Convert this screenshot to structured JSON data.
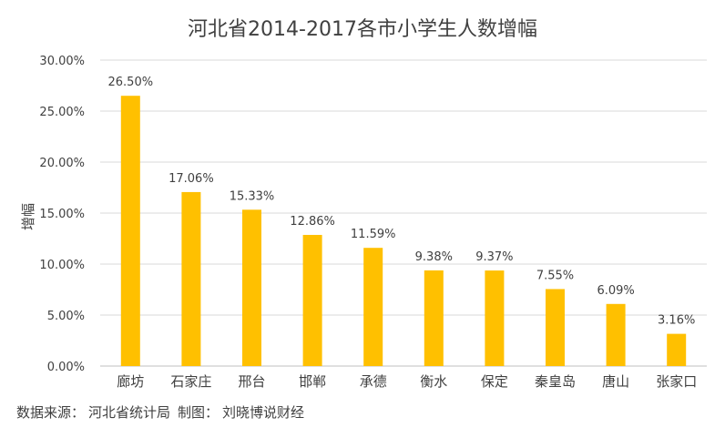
{
  "chart_data": {
    "type": "bar",
    "title": "河北省2014-2017各市小学生人数增幅",
    "ylabel": "增幅",
    "xlabel": "",
    "categories": [
      "廊坊",
      "石家庄",
      "邢台",
      "邯郸",
      "承德",
      "衡水",
      "保定",
      "秦皇岛",
      "唐山",
      "张家口"
    ],
    "values": [
      26.5,
      17.06,
      15.33,
      12.86,
      11.59,
      9.38,
      9.37,
      7.55,
      6.09,
      3.16
    ],
    "data_labels": [
      "26.50%",
      "17.06%",
      "15.33%",
      "12.86%",
      "11.59%",
      "9.38%",
      "9.37%",
      "7.55%",
      "6.09%",
      "3.16%"
    ],
    "ylim": [
      0,
      30
    ],
    "yticks": [
      0,
      5,
      10,
      15,
      20,
      25,
      30
    ],
    "ytick_labels": [
      "0.00%",
      "5.00%",
      "10.00%",
      "15.00%",
      "20.00%",
      "25.00%",
      "30.00%"
    ],
    "bar_color": "#FFC000",
    "grid": true,
    "legend": "none"
  },
  "source": {
    "label": "数据来源：",
    "text": "河北省统计局",
    "made_label": "制图：",
    "made_by": "刘晓博说财经"
  }
}
